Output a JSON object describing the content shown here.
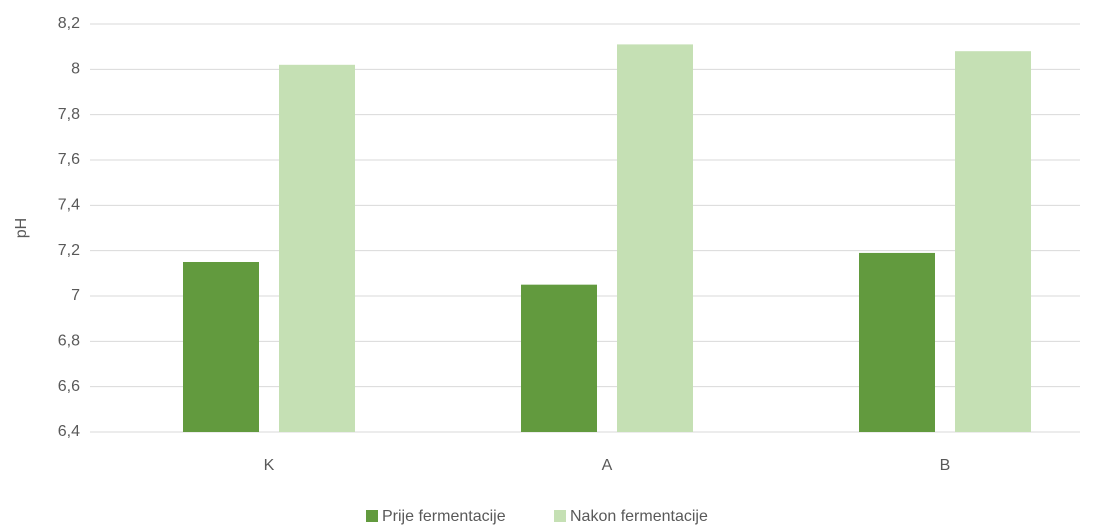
{
  "chart_data": {
    "type": "bar",
    "y_label": "pH",
    "categories": [
      "K",
      "A",
      "B"
    ],
    "series": [
      {
        "name": "Prije fermentacije",
        "color": "#629a3e",
        "values": [
          7.15,
          7.05,
          7.19
        ]
      },
      {
        "name": "Nakon fermentacije",
        "color": "#c5e0b4",
        "values": [
          8.02,
          8.11,
          8.08
        ]
      }
    ],
    "ylim": [
      6.4,
      8.2
    ],
    "yticks": [
      {
        "value": 6.4,
        "label": "6,4"
      },
      {
        "value": 6.6,
        "label": "6,6"
      },
      {
        "value": 6.8,
        "label": "6,8"
      },
      7,
      {
        "value": 7.2,
        "label": "7,2"
      },
      {
        "value": 7.4,
        "label": "7,4"
      },
      {
        "value": 7.6,
        "label": "7,6"
      },
      {
        "value": 7.8,
        "label": "7,8"
      },
      8,
      {
        "value": 8.2,
        "label": "8,2"
      }
    ],
    "grid": true,
    "legend": "bottom"
  }
}
